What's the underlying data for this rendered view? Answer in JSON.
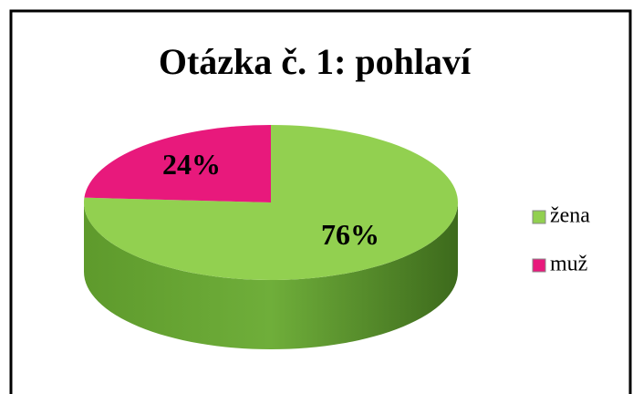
{
  "chart_data": {
    "type": "pie",
    "title": "Otázka č. 1: pohlaví",
    "categories": [
      "žena",
      "muž"
    ],
    "values": [
      76,
      24
    ],
    "value_labels": [
      "76%",
      "24%"
    ],
    "colors": [
      "#92d050",
      "#e8197c"
    ],
    "legend": "right"
  }
}
